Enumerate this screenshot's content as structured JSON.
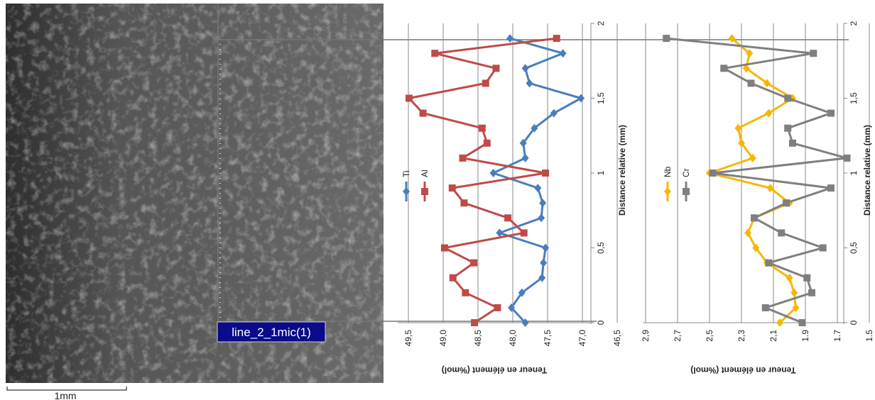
{
  "image": {
    "annotation": "line_2_1mic(1)",
    "scale_bar": "1mm"
  },
  "chart_data": [
    {
      "type": "line",
      "x_label": "Distance relative (mm)",
      "y_label": "Teneur en élément (%mol)",
      "x": [
        0,
        0.1,
        0.2,
        0.3,
        0.4,
        0.5,
        0.6,
        0.7,
        0.8,
        0.9,
        1.0,
        1.1,
        1.2,
        1.3,
        1.4,
        1.5,
        1.6,
        1.7,
        1.8,
        1.9
      ],
      "xlim": [
        0,
        2
      ],
      "xticks": [
        0,
        {
          "value": 0.5,
          "label": "0,5"
        },
        1,
        {
          "value": 1.5,
          "label": "1,5"
        },
        2
      ],
      "ylim": [
        46.5,
        50.0
      ],
      "yticks": [
        {
          "value": 46.5,
          "label": "46,5"
        },
        {
          "value": 47.0,
          "label": "47,0"
        },
        {
          "value": 47.5,
          "label": "47,5"
        },
        {
          "value": 48.0,
          "label": "48,0"
        },
        {
          "value": 48.5,
          "label": "48,5"
        },
        {
          "value": 49.0,
          "label": "49,0"
        },
        {
          "value": 49.5,
          "label": "49,5"
        }
      ],
      "grid": true,
      "series": [
        {
          "name": "Ti",
          "color": "#4a7ebb",
          "marker": "diamond",
          "values": [
            47.82,
            48.02,
            47.87,
            47.58,
            47.56,
            47.53,
            48.19,
            47.59,
            47.57,
            47.64,
            48.28,
            47.82,
            47.85,
            47.69,
            47.41,
            47.02,
            47.76,
            47.82,
            47.28,
            48.04
          ]
        },
        {
          "name": "Al",
          "color": "#be4b48",
          "marker": "square",
          "values": [
            48.55,
            48.22,
            48.68,
            48.86,
            48.56,
            48.98,
            47.84,
            48.07,
            48.7,
            48.87,
            47.53,
            48.72,
            48.37,
            48.44,
            49.29,
            49.49,
            48.39,
            48.24,
            49.12,
            47.37
          ]
        }
      ]
    },
    {
      "type": "line",
      "x_label": "Distance relative (mm)",
      "y_label": "Teneur en élément (%mol)",
      "x": [
        0,
        0.1,
        0.2,
        0.3,
        0.4,
        0.5,
        0.6,
        0.7,
        0.8,
        0.9,
        1.0,
        1.1,
        1.2,
        1.3,
        1.4,
        1.5,
        1.6,
        1.7,
        1.8,
        1.9
      ],
      "xlim": [
        0,
        2
      ],
      "xticks": [
        0,
        {
          "value": 0.5,
          "label": "0,5"
        },
        1,
        {
          "value": 1.5,
          "label": "1,5"
        },
        2
      ],
      "ylim": [
        1.5,
        3.1
      ],
      "yticks": [
        1.5,
        1.7,
        1.9,
        {
          "value": 2.1,
          "label": "2,1"
        },
        {
          "value": 2.3,
          "label": "2,3"
        },
        {
          "value": 2.5,
          "label": "2,5"
        },
        {
          "value": 2.7,
          "label": "2,7"
        },
        {
          "value": 2.9,
          "label": "2,9"
        }
      ],
      "grid": true,
      "series": [
        {
          "name": "Nb",
          "color": "#f5b800",
          "marker": "diamond",
          "values": [
            2.06,
            1.96,
            1.97,
            2.0,
            2.14,
            2.21,
            2.26,
            2.22,
            2.0,
            2.12,
            2.5,
            2.23,
            2.3,
            2.32,
            2.13,
            1.98,
            2.14,
            2.27,
            2.25,
            2.36
          ]
        },
        {
          "name": "Cr",
          "color": "#7f7f7f",
          "marker": "square",
          "values": [
            1.92,
            2.15,
            1.86,
            1.89,
            2.13,
            1.79,
            2.05,
            2.22,
            2.02,
            1.74,
            2.48,
            1.64,
            1.98,
            2.01,
            1.74,
            2.01,
            2.24,
            2.41,
            1.85,
            2.77
          ]
        }
      ]
    }
  ]
}
